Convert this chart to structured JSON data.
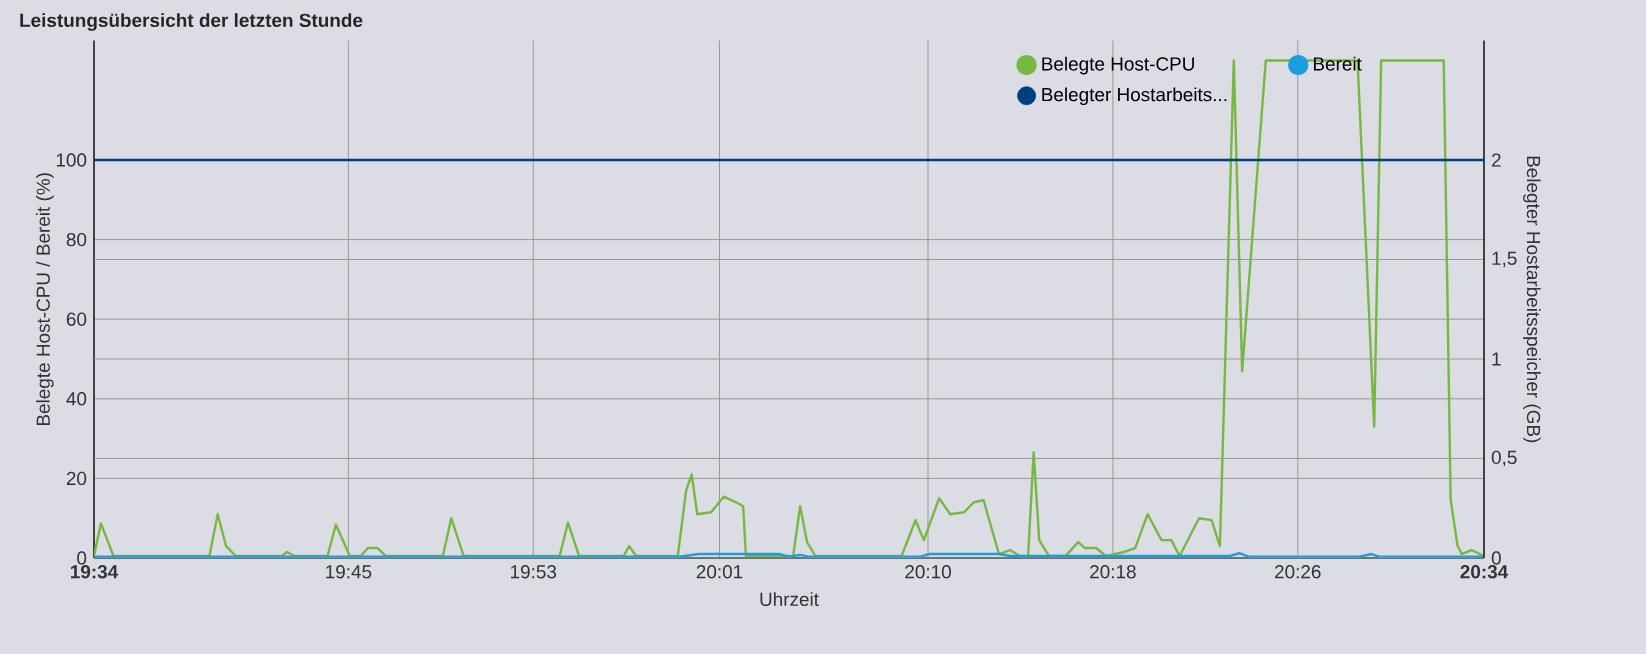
{
  "chart_data": {
    "type": "line",
    "title": "Leistungsübersicht der letzten Stunde",
    "xlabel": "Uhrzeit",
    "ylabel": "Belegte Host-CPU / Bereit (%)",
    "y2label": "Belegter Hostarbeitsspeicher (GB)",
    "xlim": [
      19.567,
      20.567
    ],
    "xticks": [
      {
        "value": 19.567,
        "label": "19:34"
      },
      {
        "value": 19.75,
        "label": "19:45"
      },
      {
        "value": 19.883,
        "label": "19:53"
      },
      {
        "value": 20.017,
        "label": "20:01"
      },
      {
        "value": 20.167,
        "label": "20:10"
      },
      {
        "value": 20.3,
        "label": "20:18"
      },
      {
        "value": 20.433,
        "label": "20:26"
      },
      {
        "value": 20.567,
        "label": "20:34"
      }
    ],
    "ylim": [
      0,
      130
    ],
    "yticks": [
      0,
      20,
      40,
      60,
      80,
      100
    ],
    "y2lim": [
      0,
      2.6
    ],
    "y2ticks": [
      0,
      {
        "value": 0.5,
        "label": "0,5"
      },
      1,
      {
        "value": 1.5,
        "label": "1,5"
      },
      2
    ],
    "grid": true,
    "legend": "top right",
    "marker": "none",
    "line_style": "solid",
    "series": [
      {
        "name": "Belegte Host-CPU",
        "color": "#77b843",
        "x": [
          19.567,
          19.572,
          19.581,
          19.65,
          19.656,
          19.662,
          19.669,
          19.702,
          19.706,
          19.711,
          19.735,
          19.741,
          19.751,
          19.759,
          19.764,
          19.771,
          19.777,
          19.818,
          19.824,
          19.833,
          19.902,
          19.908,
          19.916,
          19.948,
          19.952,
          19.957,
          19.987,
          19.993,
          19.997,
          20.001,
          20.011,
          20.02,
          20.029,
          20.034,
          20.036,
          20.07,
          20.075,
          20.08,
          20.086,
          20.148,
          20.158,
          20.164,
          20.175,
          20.183,
          20.193,
          20.2,
          20.207,
          20.218,
          20.226,
          20.233,
          20.239,
          20.243,
          20.247,
          20.254,
          20.266,
          20.275,
          20.28,
          20.288,
          20.295,
          20.308,
          20.316,
          20.325,
          20.335,
          20.342,
          20.348,
          20.362,
          20.371,
          20.377,
          20.387,
          20.393,
          20.41,
          20.476,
          20.488,
          20.493,
          20.538,
          20.543,
          20.548,
          20.551,
          20.558,
          20.567
        ],
        "values": [
          0.5,
          8.7,
          0.5,
          0.5,
          11,
          3,
          0.5,
          0.5,
          1.5,
          0.5,
          0.5,
          8.4,
          0.5,
          0.5,
          2.5,
          2.5,
          0.5,
          0.5,
          10,
          0.5,
          0.5,
          8.9,
          0.5,
          0.5,
          3,
          0.5,
          0.5,
          17,
          21,
          11,
          11.5,
          15.4,
          14,
          13,
          0.5,
          0.5,
          13,
          4,
          0.5,
          0.5,
          9.5,
          4.5,
          15,
          11,
          11.5,
          14,
          14.5,
          1,
          2,
          0.5,
          0.5,
          26.6,
          4.5,
          0.5,
          0.5,
          4,
          2.5,
          2.5,
          0.5,
          1.5,
          2.5,
          11,
          4.5,
          4.5,
          0.5,
          10,
          9.5,
          3,
          125,
          47,
          125,
          125,
          33,
          125,
          125,
          14.6,
          3,
          1,
          2,
          0.5
        ]
      },
      {
        "name": "Bereit",
        "color": "#1a9ee0",
        "x": [
          19.567,
          19.988,
          20.002,
          20.06,
          20.067,
          20.075,
          20.082,
          20.161,
          20.168,
          20.218,
          20.226,
          20.384,
          20.391,
          20.398,
          20.477,
          20.486,
          20.492,
          20.567
        ],
        "values": [
          0.3,
          0.3,
          1,
          1,
          0.3,
          0.8,
          0.3,
          0.3,
          1,
          1,
          0.5,
          0.5,
          1.2,
          0.3,
          0.3,
          1,
          0.3,
          0.3
        ]
      },
      {
        "name": "Belegter Hostarbeits...",
        "color": "#003f7f",
        "axis": "y2",
        "x": [
          19.567,
          20.567
        ],
        "values": [
          2,
          2
        ]
      }
    ]
  }
}
